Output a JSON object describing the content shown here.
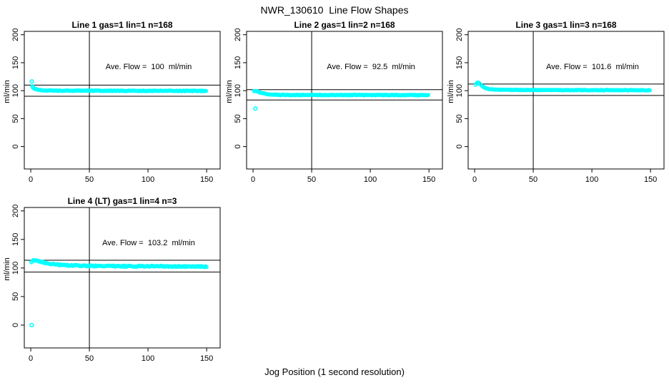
{
  "main": {
    "title": "NWR_130610  Line Flow Shapes",
    "xlabel": "Jog Position (1 second resolution)"
  },
  "colors": {
    "point": "#00FFFF",
    "line": "#000000",
    "background": "#FFFFFF"
  },
  "axes": {
    "x_ticks": [
      0,
      50,
      100,
      150
    ],
    "y_ticks": [
      0,
      50,
      100,
      150,
      200
    ],
    "y_unit_label": "ml/min",
    "vline_x": 50
  },
  "chart_data": [
    {
      "type": "scatter",
      "title": "Line 1 gas=1 lin=1 n=168",
      "ave_flow": 100,
      "ave_flow_label": "Ave. Flow =  100  ml/min",
      "n": 168,
      "ref_lines": [
        110,
        90
      ],
      "point_step": 0.9,
      "jitter": 0.6,
      "profile": [
        [
          1.8,
          106
        ],
        [
          3,
          103.5
        ],
        [
          5,
          102
        ],
        [
          8,
          101
        ],
        [
          12,
          100.5
        ],
        [
          20,
          100
        ],
        [
          50,
          100
        ],
        [
          80,
          99.8
        ],
        [
          110,
          99.6
        ],
        [
          150,
          99.6
        ]
      ],
      "extra_points": [
        [
          0.9,
          116.5
        ],
        [
          1.6,
          107.5
        ]
      ]
    },
    {
      "type": "scatter",
      "title": "Line 2 gas=1 lin=2 n=168",
      "ave_flow": 92.5,
      "ave_flow_label": "Ave. Flow =  92.5  ml/min",
      "n": 168,
      "ref_lines": [
        101.75,
        83.25
      ],
      "point_step": 0.9,
      "jitter": 0.6,
      "profile": [
        [
          0.9,
          99
        ],
        [
          2,
          100
        ],
        [
          3.5,
          99
        ],
        [
          5,
          97.5
        ],
        [
          7,
          96
        ],
        [
          10,
          94.5
        ],
        [
          14,
          93.3
        ],
        [
          20,
          92.7
        ],
        [
          30,
          92.3
        ],
        [
          60,
          92.2
        ],
        [
          100,
          92.2
        ],
        [
          150,
          92
        ]
      ],
      "extra_points": [
        [
          2,
          68
        ]
      ]
    },
    {
      "type": "scatter",
      "title": "Line 3 gas=1 lin=3 n=168",
      "ave_flow": 101.6,
      "ave_flow_label": "Ave. Flow =  101.6  ml/min",
      "n": 168,
      "ref_lines": [
        111.76,
        91.44
      ],
      "point_step": 0.9,
      "jitter": 0.5,
      "profile": [
        [
          0.9,
          111
        ],
        [
          2,
          114.5
        ],
        [
          3,
          114.8
        ],
        [
          4,
          113
        ],
        [
          5,
          111
        ],
        [
          6.5,
          108.5
        ],
        [
          8,
          106
        ],
        [
          10,
          104
        ],
        [
          13,
          102.5
        ],
        [
          18,
          101.8
        ],
        [
          30,
          101.3
        ],
        [
          60,
          101
        ],
        [
          100,
          101
        ],
        [
          148,
          100.7
        ],
        [
          150,
          100.3
        ]
      ],
      "extra_points": []
    },
    {
      "type": "scatter",
      "title": "Line 4 (LT) gas=1 lin=4 n=3",
      "ave_flow": 103.2,
      "ave_flow_label": "Ave. Flow =  103.2  ml/min",
      "n": 3,
      "ref_lines": [
        113.52,
        92.88
      ],
      "point_step": 0.9,
      "jitter": 1.0,
      "profile": [
        [
          0.5,
          110
        ],
        [
          1.5,
          112.5
        ],
        [
          2.5,
          113.8
        ],
        [
          4,
          113
        ],
        [
          6,
          112
        ],
        [
          9,
          110.5
        ],
        [
          13,
          108.8
        ],
        [
          18,
          107
        ],
        [
          24,
          105.8
        ],
        [
          32,
          104.7
        ],
        [
          42,
          104
        ],
        [
          55,
          103.5
        ],
        [
          70,
          103.2
        ],
        [
          85,
          103
        ],
        [
          100,
          103.2
        ],
        [
          115,
          103
        ],
        [
          130,
          102.8
        ],
        [
          150,
          102.3
        ]
      ],
      "extra_points": [
        [
          0.8,
          0
        ]
      ]
    }
  ]
}
